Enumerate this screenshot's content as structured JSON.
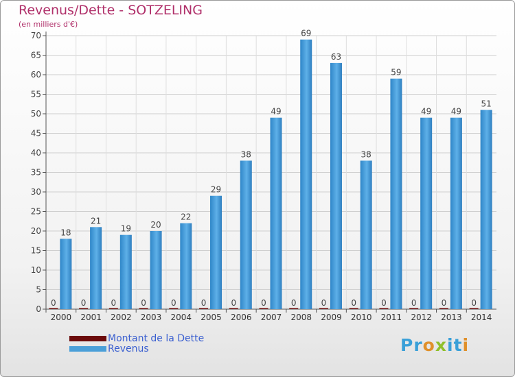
{
  "colors": {
    "accent": "#b0306a",
    "revenus": "#4a9fd8",
    "dette": "#6b0a0a",
    "legend_text": "#3a5fd0"
  },
  "brand": {
    "logo_text": "Proxiti"
  },
  "chart_data": {
    "type": "bar",
    "title": "Revenus/Dette - SOTZELING",
    "subtitle": "(en milliers d'€)",
    "xlabel": "",
    "ylabel": "",
    "ylim": [
      0,
      70
    ],
    "yticks": [
      0,
      5,
      10,
      15,
      20,
      25,
      30,
      35,
      40,
      45,
      50,
      55,
      60,
      65,
      70
    ],
    "grid": true,
    "legend_position": "bottom-left",
    "categories": [
      "2000",
      "2001",
      "2002",
      "2003",
      "2004",
      "2005",
      "2006",
      "2007",
      "2008",
      "2009",
      "2010",
      "2011",
      "2012",
      "2013",
      "2014"
    ],
    "series": [
      {
        "name": "Montant de la Dette",
        "color": "#6b0a0a",
        "values": [
          0,
          0,
          0,
          0,
          0,
          0,
          0,
          0,
          0,
          0,
          0,
          0,
          0,
          0,
          0
        ]
      },
      {
        "name": "Revenus",
        "color": "#4a9fd8",
        "values": [
          18,
          21,
          19,
          20,
          22,
          29,
          38,
          49,
          69,
          63,
          38,
          59,
          49,
          49,
          51
        ]
      }
    ]
  }
}
